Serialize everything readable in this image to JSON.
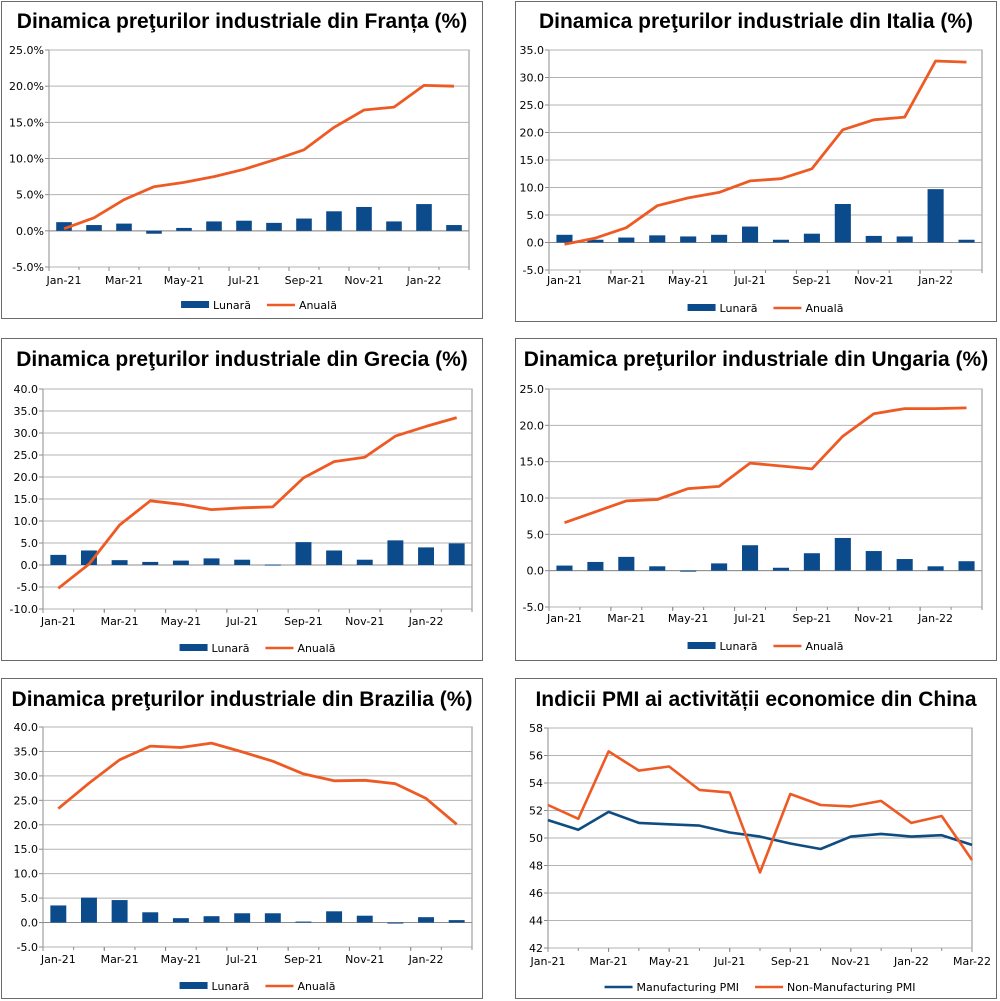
{
  "colors": {
    "monthly": "#0b4a8b",
    "annual": "#ee5a24",
    "pmi_manufacturing": "#0f4c81",
    "pmi_nonmanufacturing": "#ee5a24",
    "grid": "#b3b3b3",
    "axis": "#8c8c8c"
  },
  "chart_data": [
    {
      "id": "franta",
      "type": "bar+line",
      "title": "Dinamica preţurilor industriale din Franța (%)",
      "categories": [
        "Jan-21",
        "Feb-21",
        "Mar-21",
        "Apr-21",
        "May-21",
        "Jun-21",
        "Jul-21",
        "Aug-21",
        "Sep-21",
        "Oct-21",
        "Nov-21",
        "Dec-21",
        "Jan-22",
        "Feb-22"
      ],
      "x_tick_labels": [
        "Jan-21",
        "Mar-21",
        "May-21",
        "Jul-21",
        "Sep-21",
        "Nov-21",
        "Jan-22"
      ],
      "y_tick_labels": [
        "25.0%",
        "20.0%",
        "15.0%",
        "10.0%",
        "5.0%",
        "0.0%",
        "-5.0%"
      ],
      "ylim": [
        -5,
        25
      ],
      "series": [
        {
          "name": "Lunară",
          "kind": "bar",
          "values": [
            1.2,
            0.8,
            1.0,
            -0.4,
            0.4,
            1.3,
            1.4,
            1.1,
            1.7,
            2.7,
            3.3,
            1.3,
            3.7,
            0.8
          ]
        },
        {
          "name": "Anuală",
          "kind": "line",
          "values": [
            0.3,
            1.8,
            4.3,
            6.1,
            6.7,
            7.5,
            8.5,
            9.8,
            11.2,
            14.3,
            16.7,
            17.1,
            20.1,
            20.0
          ]
        }
      ]
    },
    {
      "id": "italia",
      "type": "bar+line",
      "title": "Dinamica preţurilor industriale din Italia (%)",
      "categories": [
        "Jan-21",
        "Feb-21",
        "Mar-21",
        "Apr-21",
        "May-21",
        "Jun-21",
        "Jul-21",
        "Aug-21",
        "Sep-21",
        "Oct-21",
        "Nov-21",
        "Dec-21",
        "Jan-22",
        "Feb-22"
      ],
      "x_tick_labels": [
        "Jan-21",
        "Mar-21",
        "May-21",
        "Jul-21",
        "Sep-21",
        "Nov-21",
        "Jan-22"
      ],
      "y_tick_labels": [
        "35.0",
        "30.0",
        "25.0",
        "20.0",
        "15.0",
        "10.0",
        "5.0",
        "0.0",
        "-5.0"
      ],
      "ylim": [
        -5,
        35
      ],
      "series": [
        {
          "name": "Lunară",
          "kind": "bar",
          "values": [
            1.4,
            0.5,
            0.9,
            1.3,
            1.1,
            1.4,
            2.9,
            0.5,
            1.6,
            7.0,
            1.2,
            1.1,
            9.7,
            0.5
          ]
        },
        {
          "name": "Anuală",
          "kind": "line",
          "values": [
            -0.3,
            0.8,
            2.7,
            6.7,
            8.1,
            9.1,
            11.2,
            11.6,
            13.4,
            20.5,
            22.3,
            22.8,
            33.0,
            32.8
          ]
        }
      ]
    },
    {
      "id": "grecia",
      "type": "bar+line",
      "title": "Dinamica preţurilor industriale din Grecia (%)",
      "categories": [
        "Jan-21",
        "Feb-21",
        "Mar-21",
        "Apr-21",
        "May-21",
        "Jun-21",
        "Jul-21",
        "Aug-21",
        "Sep-21",
        "Oct-21",
        "Nov-21",
        "Dec-21",
        "Jan-22",
        "Feb-22"
      ],
      "x_tick_labels": [
        "Jan-21",
        "Mar-21",
        "May-21",
        "Jul-21",
        "Sep-21",
        "Nov-21",
        "Jan-22"
      ],
      "y_tick_labels": [
        "40.0",
        "35.0",
        "30.0",
        "25.0",
        "20.0",
        "15.0",
        "10.0",
        "5.0",
        "0.0",
        "-5.0",
        "-10.0"
      ],
      "ylim": [
        -10,
        40
      ],
      "series": [
        {
          "name": "Lunară",
          "kind": "bar",
          "values": [
            2.3,
            3.3,
            1.1,
            0.7,
            1.0,
            1.5,
            1.2,
            0.1,
            5.2,
            3.3,
            1.2,
            5.6,
            4.0,
            4.9
          ]
        },
        {
          "name": "Anuală",
          "kind": "line",
          "values": [
            -5.3,
            0.2,
            9.1,
            14.6,
            13.8,
            12.6,
            13.0,
            13.2,
            19.8,
            23.5,
            24.5,
            29.3,
            31.5,
            33.5
          ]
        }
      ]
    },
    {
      "id": "ungaria",
      "type": "bar+line",
      "title": "Dinamica preţurilor industriale din Ungaria (%)",
      "categories": [
        "Jan-21",
        "Feb-21",
        "Mar-21",
        "Apr-21",
        "May-21",
        "Jun-21",
        "Jul-21",
        "Aug-21",
        "Sep-21",
        "Oct-21",
        "Nov-21",
        "Dec-21",
        "Jan-22",
        "Feb-22"
      ],
      "x_tick_labels": [
        "Jan-21",
        "Mar-21",
        "May-21",
        "Jul-21",
        "Sep-21",
        "Nov-21",
        "Jan-22"
      ],
      "y_tick_labels": [
        "25.0",
        "20.0",
        "15.0",
        "10.0",
        "5.0",
        "0.0",
        "-5.0"
      ],
      "ylim": [
        -5,
        25
      ],
      "series": [
        {
          "name": "Lunară",
          "kind": "bar",
          "values": [
            0.7,
            1.2,
            1.9,
            0.6,
            -0.1,
            1.0,
            3.5,
            0.4,
            2.4,
            4.5,
            2.7,
            1.6,
            0.6,
            1.3
          ]
        },
        {
          "name": "Anuală",
          "kind": "line",
          "values": [
            6.6,
            8.1,
            9.6,
            9.8,
            11.3,
            11.6,
            14.8,
            14.4,
            14.0,
            18.5,
            21.6,
            22.3,
            22.3,
            22.4
          ]
        }
      ]
    },
    {
      "id": "brazilia",
      "type": "bar+line",
      "title": "Dinamica preţurilor industriale din Brazilia (%)",
      "categories": [
        "Jan-21",
        "Feb-21",
        "Mar-21",
        "Apr-21",
        "May-21",
        "Jun-21",
        "Jul-21",
        "Aug-21",
        "Sep-21",
        "Oct-21",
        "Nov-21",
        "Dec-21",
        "Jan-22",
        "Feb-22"
      ],
      "x_tick_labels": [
        "Jan-21",
        "Mar-21",
        "May-21",
        "Jul-21",
        "Sep-21",
        "Nov-21",
        "Jan-22"
      ],
      "y_tick_labels": [
        "40.0",
        "35.0",
        "30.0",
        "25.0",
        "20.0",
        "15.0",
        "10.0",
        "5.0",
        "0.0",
        "-5.0"
      ],
      "ylim": [
        -5,
        40
      ],
      "series": [
        {
          "name": "Lunară",
          "kind": "bar",
          "values": [
            3.5,
            5.1,
            4.6,
            2.1,
            0.9,
            1.3,
            1.9,
            1.9,
            0.2,
            2.3,
            1.4,
            -0.1,
            1.1,
            0.5
          ]
        },
        {
          "name": "Anuală",
          "kind": "line",
          "values": [
            23.3,
            28.5,
            33.3,
            36.1,
            35.8,
            36.7,
            34.9,
            33.0,
            30.4,
            29.0,
            29.1,
            28.4,
            25.4,
            20.1
          ]
        }
      ]
    },
    {
      "id": "china_pmi",
      "type": "line",
      "title": "Indicii PMI ai activității economice din China",
      "categories": [
        "Jan-21",
        "Feb-21",
        "Mar-21",
        "Apr-21",
        "May-21",
        "Jun-21",
        "Jul-21",
        "Aug-21",
        "Sep-21",
        "Oct-21",
        "Nov-21",
        "Dec-21",
        "Jan-22",
        "Feb-22",
        "Mar-22"
      ],
      "x_tick_labels": [
        "Jan-21",
        "Mar-21",
        "May-21",
        "Jul-21",
        "Sep-21",
        "Nov-21",
        "Jan-22",
        "Mar-22"
      ],
      "y_tick_labels": [
        "58",
        "56",
        "54",
        "52",
        "50",
        "48",
        "46",
        "44",
        "42"
      ],
      "ylim": [
        42,
        58
      ],
      "series": [
        {
          "name": "Manufacturing PMI",
          "kind": "line",
          "values": [
            51.3,
            50.6,
            51.9,
            51.1,
            51.0,
            50.9,
            50.4,
            50.1,
            49.6,
            49.2,
            50.1,
            50.3,
            50.1,
            50.2,
            49.5
          ]
        },
        {
          "name": "Non-Manufacturing PMI",
          "kind": "line",
          "values": [
            52.4,
            51.4,
            56.3,
            54.9,
            55.2,
            53.5,
            53.3,
            47.5,
            53.2,
            52.4,
            52.3,
            52.7,
            51.1,
            51.6,
            48.4
          ]
        }
      ]
    }
  ]
}
